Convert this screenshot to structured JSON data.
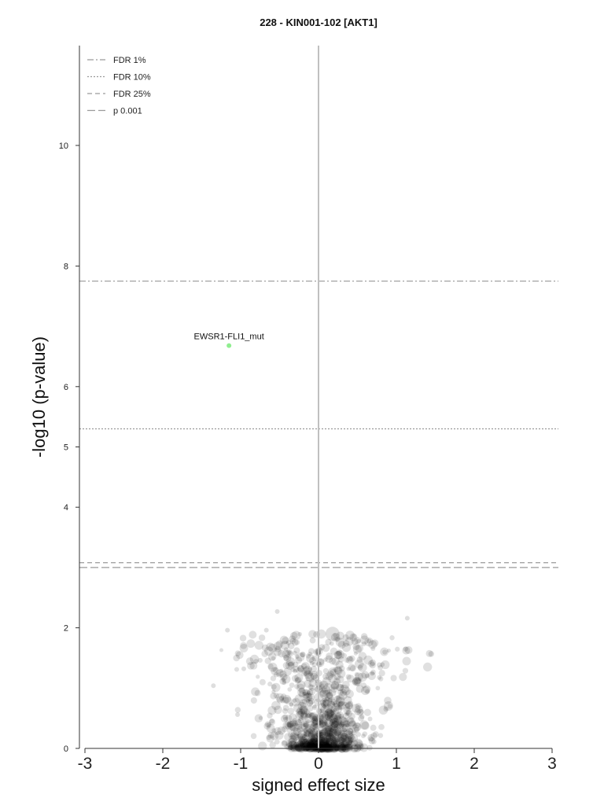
{
  "chart_data": {
    "type": "scatter",
    "title": "228 - KIN001-102 [AKT1]",
    "xlabel": "signed effect size",
    "ylabel": "-log10 (p-value)",
    "xlim": [
      -3.1,
      3.1
    ],
    "ylim": [
      0,
      11.7
    ],
    "x_ticks": [
      -3,
      -2,
      -1,
      0,
      1,
      2,
      3
    ],
    "x_tick_labels": [
      "-3",
      "-2",
      "-1",
      "0",
      "1",
      "2",
      "3"
    ],
    "y_ticks": [
      0,
      2,
      4,
      5,
      6,
      8,
      10
    ],
    "y_tick_labels": [
      "0",
      "2",
      "4",
      "5",
      "6",
      "8",
      "10"
    ],
    "grid": false,
    "legend_position": "top-left",
    "thresholds": [
      {
        "name": "FDR 1%",
        "y": 7.75,
        "dash": "dashdot"
      },
      {
        "name": "FDR 10%",
        "y": 5.3,
        "dash": "dotted"
      },
      {
        "name": "FDR 25%",
        "y": 3.08,
        "dash": "dashed"
      },
      {
        "name": "p 0.001",
        "y": 3.0,
        "dash": "longdash"
      }
    ],
    "highlight": {
      "label": "EWSR1-FLI1_mut",
      "x": -1.15,
      "y": 6.68,
      "color": "#90ee90"
    },
    "notable_points": [
      {
        "x": 0.18,
        "y": 1.9,
        "size": 9
      },
      {
        "x": 1.14,
        "y": 2.16,
        "size": 3
      },
      {
        "x": -0.53,
        "y": 2.27,
        "size": 3
      },
      {
        "x": -1.17,
        "y": 1.96,
        "size": 3
      },
      {
        "x": -0.67,
        "y": 1.96,
        "size": 3
      },
      {
        "x": -1.35,
        "y": 1.04,
        "size": 3
      },
      {
        "x": 0.82,
        "y": 1.39,
        "size": 3
      },
      {
        "x": 0.53,
        "y": 1.47,
        "size": 4
      },
      {
        "x": -0.4,
        "y": 1.5,
        "size": 5
      },
      {
        "x": 0.3,
        "y": 1.72,
        "size": 5
      },
      {
        "x": 0.35,
        "y": 1.84,
        "size": 4
      },
      {
        "x": 0.65,
        "y": 1.78,
        "size": 3
      },
      {
        "x": -1.04,
        "y": 0.56,
        "size": 3
      },
      {
        "x": -0.96,
        "y": 1.32,
        "size": 3
      }
    ],
    "cloud": {
      "center_x": 0.05,
      "spread_x": 0.22,
      "max_y": 1.9,
      "count": 1100,
      "color": "#000000",
      "opacity": 0.12
    }
  }
}
